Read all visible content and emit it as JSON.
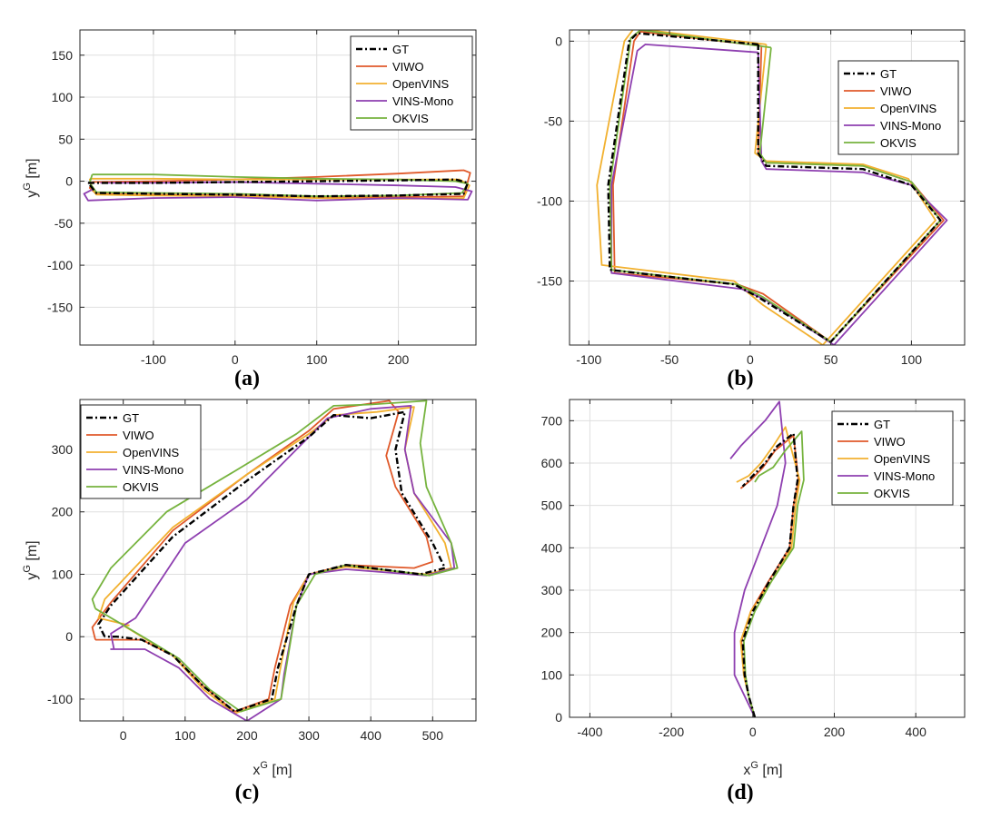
{
  "legend_entries": [
    "GT",
    "VIWO",
    "OpenVINS",
    "VINS-Mono",
    "OKVIS"
  ],
  "colors": {
    "GT": "#000000",
    "VIWO": "#e05a2b",
    "OpenVINS": "#f2b130",
    "VINS-Mono": "#8e3fb0",
    "OKVIS": "#76b33e"
  },
  "chart_data": [
    {
      "id": "a",
      "type": "line",
      "caption": "(a)",
      "xlabel": "",
      "ylabel": "y^G [m]",
      "xlim": [
        -190,
        295
      ],
      "ylim": [
        -195,
        180
      ],
      "xticks": [
        -100,
        0,
        100,
        200
      ],
      "yticks": [
        -150,
        -100,
        -50,
        0,
        50,
        100,
        150
      ],
      "grid": true,
      "legend_position": "top-right",
      "series": [
        {
          "name": "GT",
          "x": [
            -180,
            -100,
            0,
            100,
            200,
            270,
            285,
            280,
            200,
            100,
            0,
            -100,
            -170,
            -175,
            -180
          ],
          "y": [
            -2,
            -2,
            -1,
            0,
            1,
            2,
            -2,
            -15,
            -17,
            -18,
            -16,
            -15,
            -14,
            -8,
            -2
          ]
        },
        {
          "name": "VIWO",
          "x": [
            -175,
            -100,
            0,
            100,
            200,
            280,
            288,
            280,
            200,
            100,
            0,
            -100,
            -170,
            -178,
            -175
          ],
          "y": [
            -1,
            0,
            2,
            5,
            9,
            13,
            10,
            -18,
            -19,
            -19,
            -17,
            -16,
            -15,
            -8,
            -1
          ]
        },
        {
          "name": "OpenVINS",
          "x": [
            -178,
            -100,
            0,
            100,
            200,
            275,
            287,
            280,
            200,
            100,
            0,
            -100,
            -170,
            -176,
            -178
          ],
          "y": [
            3,
            3,
            2,
            2,
            2,
            2,
            -5,
            -20,
            -21,
            -20,
            -18,
            -17,
            -16,
            -8,
            3
          ]
        },
        {
          "name": "VINS-Mono",
          "x": [
            -165,
            -100,
            0,
            100,
            200,
            270,
            290,
            285,
            200,
            100,
            0,
            -100,
            -180,
            -185,
            -175
          ],
          "y": [
            -2,
            -2,
            -1,
            -3,
            -5,
            -7,
            -12,
            -22,
            -20,
            -23,
            -19,
            -20,
            -23,
            -15,
            -10
          ]
        },
        {
          "name": "OKVIS",
          "x": [
            -175,
            -100,
            0,
            100,
            200,
            270,
            285,
            278,
            200,
            100,
            0,
            -100,
            -170,
            -178,
            -175
          ],
          "y": [
            8,
            8,
            5,
            3,
            2,
            0,
            -3,
            -14,
            -17,
            -18,
            -15,
            -14,
            -13,
            -2,
            8
          ]
        }
      ]
    },
    {
      "id": "b",
      "type": "line",
      "caption": "(b)",
      "xlabel": "",
      "ylabel": "",
      "xlim": [
        -112,
        133
      ],
      "ylim": [
        -190,
        7
      ],
      "xticks": [
        -100,
        -50,
        0,
        50,
        100
      ],
      "yticks": [
        -150,
        -100,
        -50,
        0
      ],
      "grid": true,
      "legend_position": "top-right",
      "series": [
        {
          "name": "GT",
          "x": [
            5,
            -70,
            -75,
            -88,
            -87,
            -10,
            5,
            50,
            118,
            100,
            70,
            10,
            5,
            5
          ],
          "y": [
            -2,
            5,
            0,
            -90,
            -143,
            -152,
            -160,
            -188,
            -112,
            -90,
            -80,
            -78,
            -70,
            -2
          ]
        },
        {
          "name": "VIWO",
          "x": [
            7,
            -68,
            -72,
            -85,
            -84,
            -8,
            8,
            50,
            120,
            100,
            70,
            10,
            5,
            7
          ],
          "y": [
            -3,
            6,
            0,
            -90,
            -145,
            -152,
            -158,
            -188,
            -112,
            -88,
            -78,
            -76,
            -70,
            -3
          ]
        },
        {
          "name": "OpenVINS",
          "x": [
            10,
            -72,
            -78,
            -95,
            -92,
            -10,
            8,
            45,
            115,
            98,
            70,
            10,
            3,
            10
          ],
          "y": [
            -2,
            8,
            0,
            -90,
            -140,
            -150,
            -165,
            -190,
            -112,
            -86,
            -77,
            -75,
            -70,
            -2
          ]
        },
        {
          "name": "VINS-Mono",
          "x": [
            5,
            -65,
            -70,
            -86,
            -86,
            -5,
            10,
            52,
            122,
            100,
            70,
            10,
            7,
            5
          ],
          "y": [
            -7,
            -2,
            -6,
            -90,
            -145,
            -155,
            -162,
            -190,
            -112,
            -90,
            -82,
            -80,
            -75,
            -7
          ]
        },
        {
          "name": "OKVIS",
          "x": [
            13,
            -68,
            -74,
            -87,
            -86,
            -8,
            8,
            50,
            118,
            100,
            70,
            10,
            6,
            13
          ],
          "y": [
            -4,
            7,
            2,
            -90,
            -143,
            -152,
            -160,
            -188,
            -112,
            -88,
            -78,
            -76,
            -70,
            -4
          ]
        }
      ]
    },
    {
      "id": "c",
      "type": "line",
      "caption": "(c)",
      "xlabel": "x^G [m]",
      "ylabel": "y^G [m]",
      "xlim": [
        -70,
        570
      ],
      "ylim": [
        -135,
        380
      ],
      "xticks": [
        0,
        100,
        200,
        300,
        400,
        500
      ],
      "yticks": [
        -100,
        0,
        100,
        200,
        300
      ],
      "grid": true,
      "legend_position": "top-left",
      "series": [
        {
          "name": "GT",
          "x": [
            -30,
            -40,
            -20,
            80,
            200,
            300,
            340,
            400,
            455,
            440,
            450,
            500,
            520,
            480,
            360,
            300,
            280,
            250,
            240,
            180,
            130,
            80,
            30,
            -10,
            -30
          ],
          "y": [
            0,
            20,
            50,
            160,
            250,
            320,
            355,
            350,
            360,
            300,
            230,
            150,
            110,
            100,
            115,
            100,
            50,
            -50,
            -100,
            -120,
            -80,
            -30,
            -5,
            0,
            0
          ]
        },
        {
          "name": "VIWO",
          "x": [
            -45,
            -50,
            -20,
            80,
            200,
            300,
            340,
            430,
            445,
            425,
            440,
            490,
            500,
            470,
            360,
            300,
            270,
            245,
            235,
            180,
            130,
            80,
            30,
            0,
            -45
          ],
          "y": [
            -5,
            15,
            55,
            170,
            260,
            330,
            365,
            378,
            360,
            290,
            240,
            160,
            120,
            110,
            115,
            100,
            50,
            -50,
            -100,
            -120,
            -80,
            -30,
            -5,
            -5,
            -5
          ]
        },
        {
          "name": "OpenVINS",
          "x": [
            10,
            -40,
            -30,
            80,
            200,
            300,
            340,
            410,
            470,
            455,
            470,
            520,
            530,
            490,
            360,
            300,
            275,
            255,
            245,
            180,
            130,
            80,
            30,
            0,
            10
          ],
          "y": [
            18,
            30,
            60,
            175,
            260,
            325,
            355,
            360,
            368,
            300,
            230,
            150,
            110,
            100,
            112,
            100,
            55,
            -45,
            -100,
            -123,
            -85,
            -30,
            0,
            18,
            18
          ]
        },
        {
          "name": "VINS-Mono",
          "x": [
            -15,
            -20,
            20,
            100,
            200,
            280,
            330,
            400,
            465,
            455,
            470,
            530,
            535,
            490,
            360,
            300,
            280,
            260,
            255,
            200,
            140,
            90,
            35,
            -20,
            -15
          ],
          "y": [
            -20,
            5,
            30,
            150,
            220,
            300,
            350,
            365,
            370,
            300,
            230,
            150,
            110,
            98,
            108,
            100,
            50,
            -60,
            -100,
            -135,
            -100,
            -50,
            -20,
            -20,
            -20
          ]
        },
        {
          "name": "OKVIS",
          "x": [
            -45,
            -50,
            -20,
            70,
            180,
            280,
            340,
            400,
            490,
            480,
            490,
            530,
            540,
            495,
            360,
            310,
            280,
            265,
            255,
            190,
            140,
            90,
            40,
            -45,
            -45
          ],
          "y": [
            45,
            60,
            110,
            200,
            265,
            325,
            370,
            372,
            378,
            310,
            240,
            150,
            110,
            98,
            115,
            100,
            50,
            -40,
            -100,
            -120,
            -85,
            -35,
            -5,
            45,
            45
          ]
        }
      ]
    },
    {
      "id": "d",
      "type": "line",
      "caption": "(d)",
      "xlabel": "x^G [m]",
      "ylabel": "",
      "xlim": [
        -450,
        520
      ],
      "ylim": [
        0,
        750
      ],
      "xticks": [
        -400,
        -200,
        0,
        200,
        400
      ],
      "yticks": [
        0,
        100,
        200,
        300,
        400,
        500,
        600,
        700
      ],
      "grid": true,
      "legend_position": "top-right",
      "series": [
        {
          "name": "GT",
          "x": [
            5,
            -10,
            -20,
            -25,
            0,
            40,
            90,
            100,
            110,
            100,
            60,
            30,
            0,
            -25
          ],
          "y": [
            0,
            50,
            100,
            180,
            250,
            320,
            400,
            500,
            560,
            670,
            640,
            600,
            570,
            545
          ]
        },
        {
          "name": "VIWO",
          "x": [
            5,
            -10,
            -22,
            -28,
            -5,
            38,
            90,
            100,
            112,
            100,
            55,
            25,
            -5,
            -30
          ],
          "y": [
            0,
            50,
            100,
            180,
            250,
            320,
            400,
            500,
            560,
            665,
            630,
            590,
            560,
            540
          ]
        },
        {
          "name": "OpenVINS",
          "x": [
            5,
            -10,
            -22,
            -30,
            -5,
            45,
            95,
            105,
            115,
            80,
            50,
            20,
            -10,
            -40
          ],
          "y": [
            0,
            50,
            100,
            180,
            250,
            320,
            400,
            500,
            560,
            685,
            640,
            600,
            570,
            555
          ]
        },
        {
          "name": "VINS-Mono",
          "x": [
            5,
            -20,
            -45,
            -45,
            -20,
            20,
            60,
            70,
            80,
            65,
            30,
            0,
            -30,
            -55
          ],
          "y": [
            0,
            50,
            100,
            200,
            300,
            400,
            500,
            550,
            600,
            745,
            700,
            670,
            640,
            610
          ]
        },
        {
          "name": "OKVIS",
          "x": [
            5,
            -10,
            -18,
            -22,
            5,
            45,
            100,
            110,
            125,
            120,
            80,
            50,
            15,
            5
          ],
          "y": [
            0,
            50,
            100,
            180,
            250,
            320,
            400,
            500,
            560,
            675,
            630,
            590,
            570,
            555
          ]
        }
      ]
    }
  ]
}
